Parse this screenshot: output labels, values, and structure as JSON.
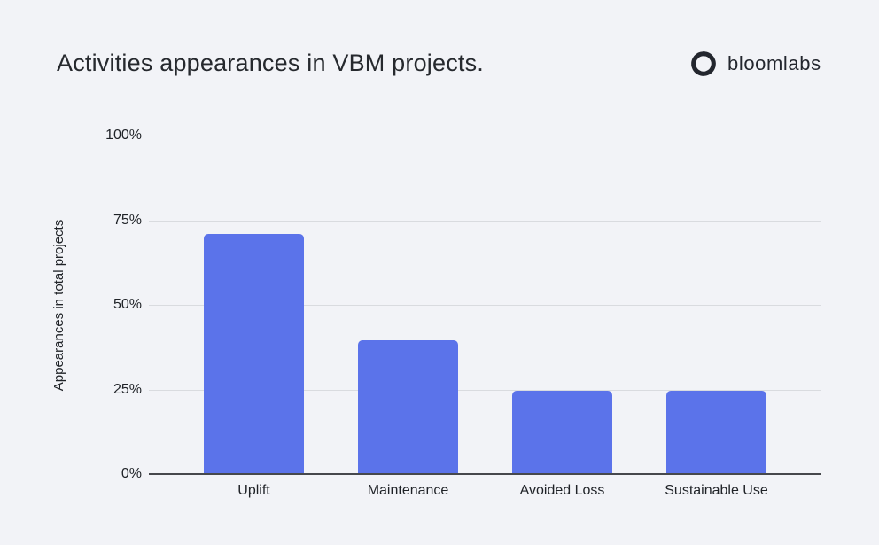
{
  "page": {
    "background_color": "#f2f3f7"
  },
  "header": {
    "title": "Activities appearances in VBM projects.",
    "logo": {
      "name": "bloomlabs",
      "icon": "pinwheel-flower-icon",
      "icon_color": "#23262e"
    }
  },
  "chart_data": {
    "type": "bar",
    "title": "Activities appearances in VBM projects.",
    "categories": [
      "Uplift",
      "Maintenance",
      "Avoided Loss",
      "Sustainable Use"
    ],
    "values": [
      71,
      39.5,
      24.5,
      24.5
    ],
    "unit": "%",
    "xlabel": "",
    "ylabel": "Appearances in total projects",
    "ylim": [
      0,
      100
    ],
    "yticks": [
      0,
      25,
      50,
      75,
      100
    ],
    "ytick_labels": [
      "0%",
      "25%",
      "50%",
      "75%",
      "100%"
    ],
    "grid": "horizontal",
    "legend": "none",
    "bar_color": "#5b73ea",
    "gridline_color": "#d9dbdf",
    "axis_color": "#46484c"
  }
}
